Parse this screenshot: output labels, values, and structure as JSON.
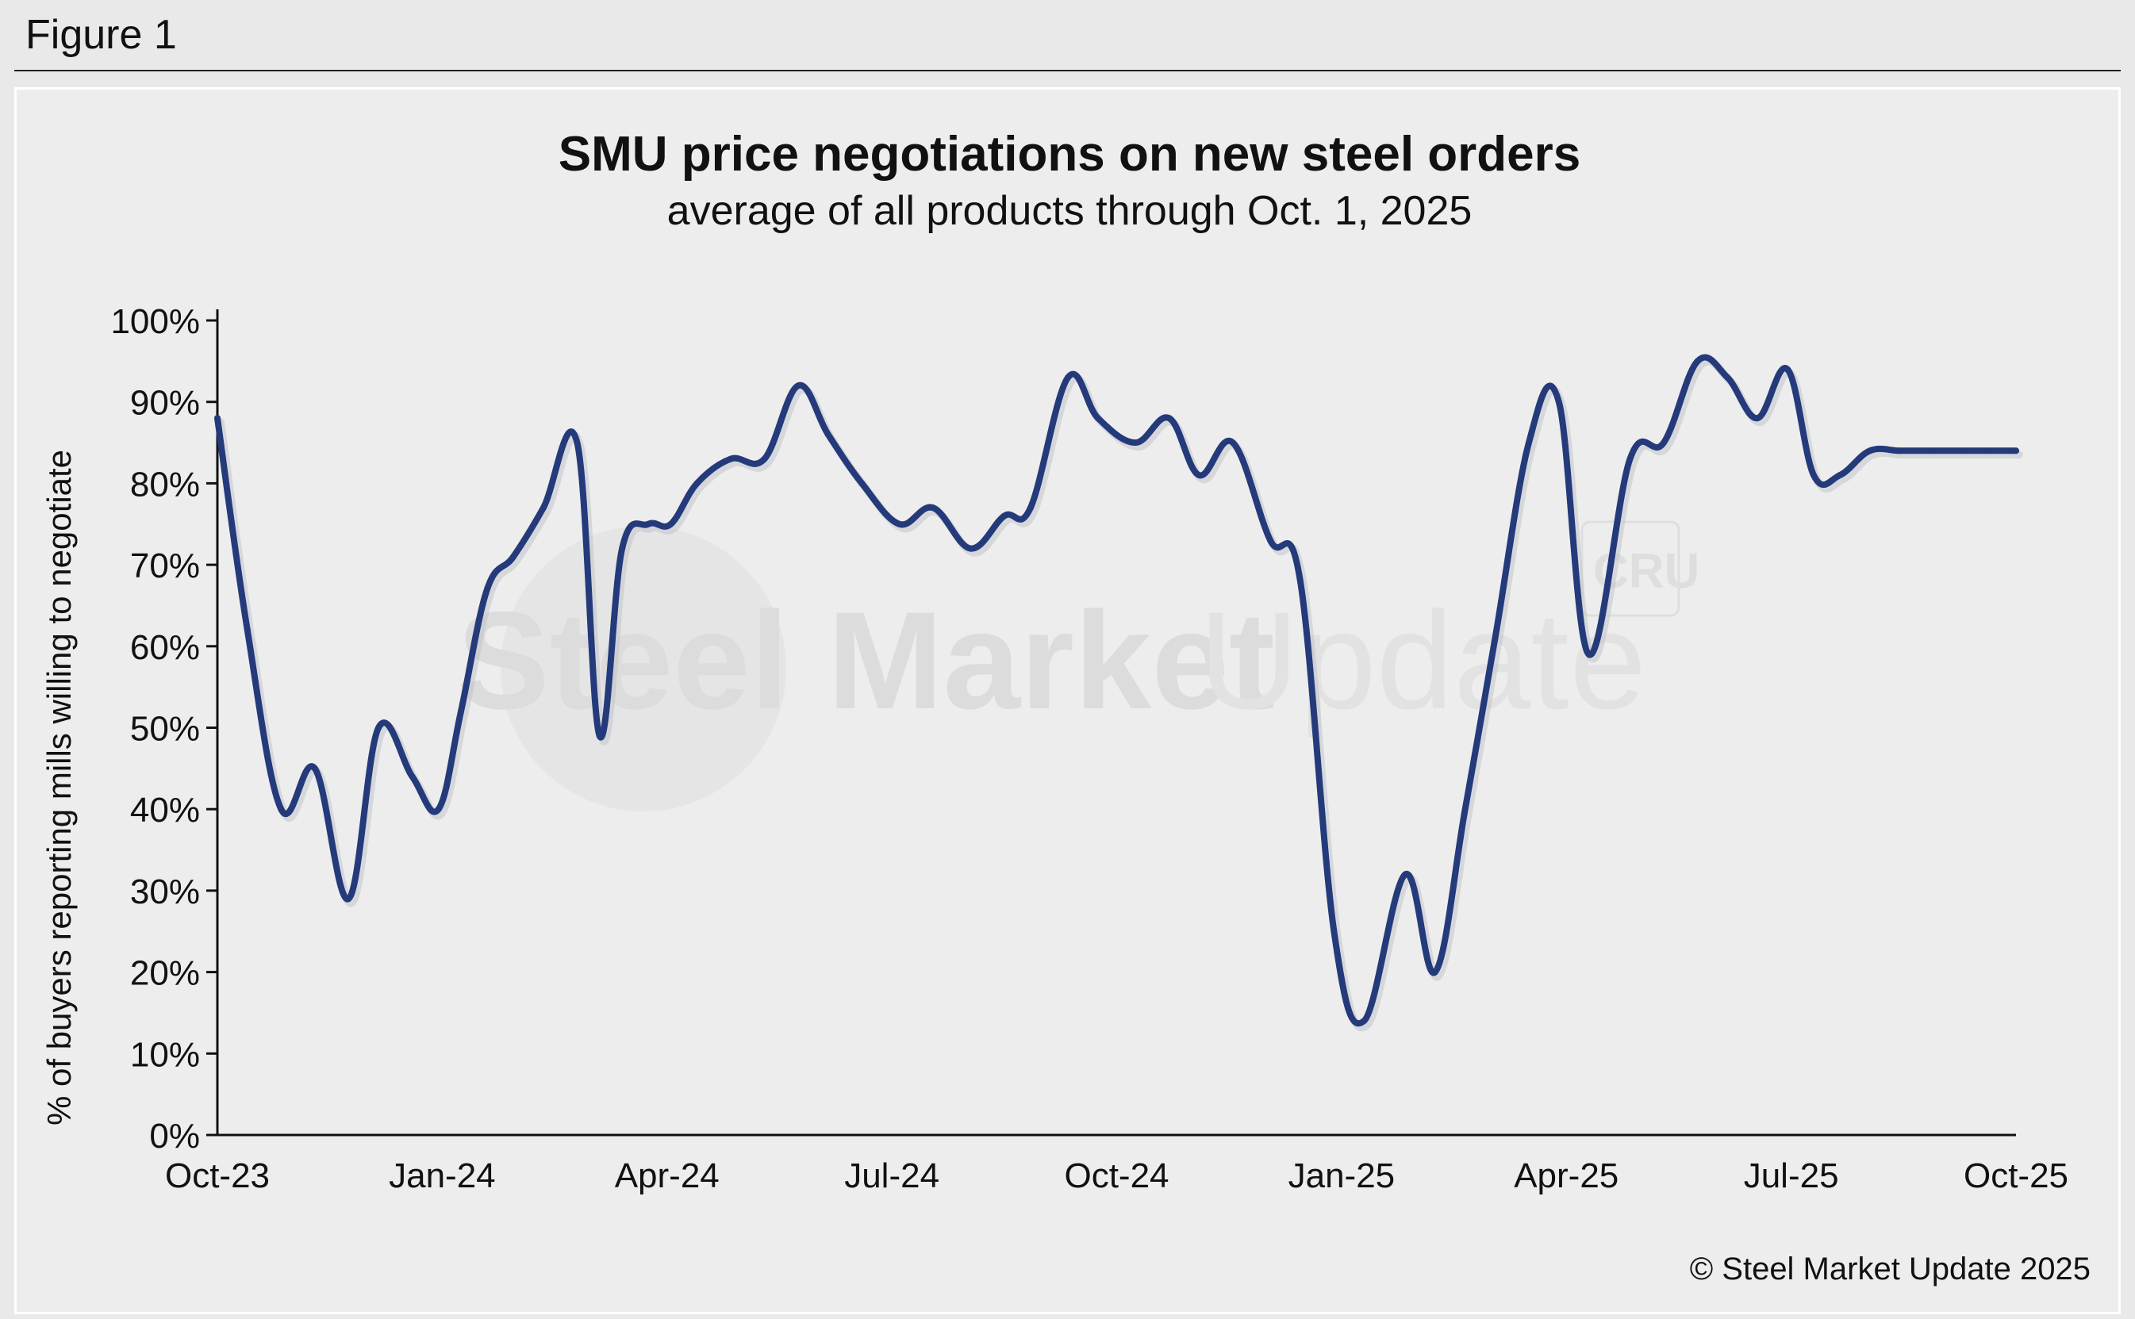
{
  "figure_label": "Figure 1",
  "copyright": "© Steel Market Update 2025",
  "watermark": {
    "text_bold": "Steel Market",
    "text_light": "Update",
    "badge": "CRU"
  },
  "colors": {
    "line": "#243a7a",
    "axis": "#111111",
    "background": "#ededed"
  },
  "chart_data": {
    "type": "line",
    "title": "SMU price negotiations on new steel orders",
    "subtitle": "average of all products through Oct. 1, 2025",
    "xlabel": "",
    "ylabel": "% of buyers reporting mills willing to negotiate",
    "ylim": [
      0,
      100
    ],
    "xlim": [
      0,
      24
    ],
    "yticks": [
      0,
      10,
      20,
      30,
      40,
      50,
      60,
      70,
      80,
      90,
      100
    ],
    "ytick_labels": [
      "0%",
      "10%",
      "20%",
      "30%",
      "40%",
      "50%",
      "60%",
      "70%",
      "80%",
      "90%",
      "100%"
    ],
    "xticks": [
      0,
      3,
      6,
      9,
      12,
      15,
      18,
      21,
      24
    ],
    "xtick_labels": [
      "Oct-23",
      "Jan-24",
      "Apr-24",
      "Jul-24",
      "Oct-24",
      "Jan-25",
      "Apr-25",
      "Jul-25",
      "Oct-25"
    ],
    "x_units": "months since Oct 2023",
    "series": [
      {
        "name": "average of all products",
        "x": [
          0,
          0.4,
          0.85,
          1.3,
          1.75,
          2.15,
          2.6,
          2.95,
          3.25,
          3.6,
          3.95,
          4.35,
          4.8,
          5.1,
          5.4,
          5.75,
          6.05,
          6.4,
          6.85,
          7.3,
          7.75,
          8.15,
          8.6,
          9.1,
          9.55,
          10.05,
          10.5,
          10.85,
          11.35,
          11.75,
          12.25,
          12.7,
          13.1,
          13.55,
          14.05,
          14.45,
          14.9,
          15.3,
          15.85,
          16.25,
          16.65,
          17.05,
          17.5,
          17.9,
          18.3,
          18.85,
          19.3,
          19.75,
          20.15,
          20.55,
          20.95,
          21.3,
          21.65,
          22.05,
          22.45,
          22.85,
          23.3,
          23.65,
          24.0
        ],
        "values": [
          88,
          62,
          40,
          45,
          29,
          50,
          44,
          40,
          52,
          67,
          71,
          77,
          85,
          49,
          72,
          75,
          75,
          80,
          83,
          83,
          92,
          86,
          80,
          75,
          77,
          72,
          76,
          77,
          93,
          88,
          85,
          88,
          81,
          85,
          73,
          68,
          25,
          14,
          32,
          20,
          40,
          61,
          85,
          90,
          59,
          83,
          85,
          95,
          93,
          88,
          94,
          81,
          81,
          84,
          84,
          84,
          84,
          84,
          84
        ]
      }
    ]
  }
}
